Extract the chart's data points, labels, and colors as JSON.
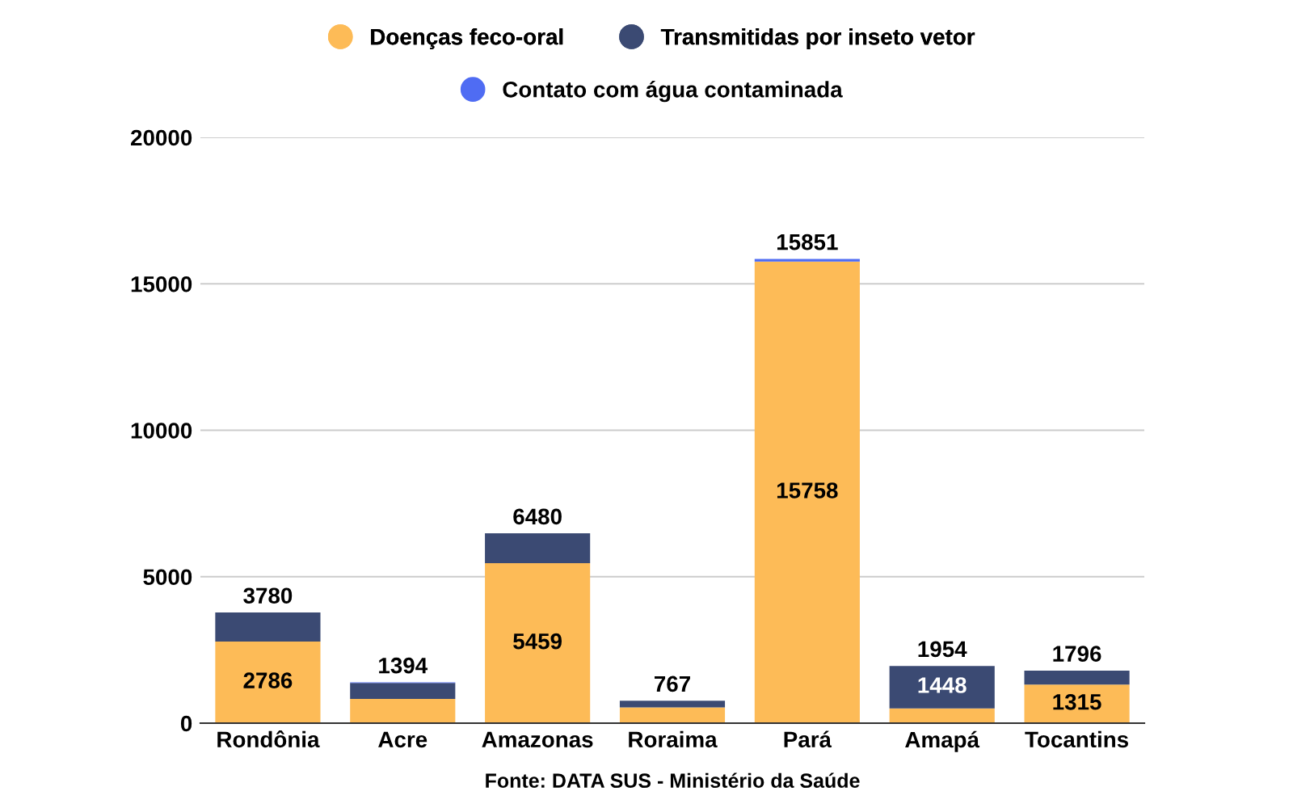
{
  "chart_data": {
    "type": "bar",
    "stacked": true,
    "categories": [
      "Rondônia",
      "Acre",
      "Amazonas",
      "Roraima",
      "Pará",
      "Amapá",
      "Tocantins"
    ],
    "series": [
      {
        "name": "Doenças feco-oral",
        "color": "#fdbb57",
        "values": [
          2786,
          830,
          5459,
          540,
          15758,
          506,
          1315
        ],
        "value_labels": [
          "2786",
          null,
          "5459",
          null,
          "15758",
          null,
          "1315"
        ]
      },
      {
        "name": "Transmitidas por inseto vetor",
        "color": "#3b4a73",
        "values": [
          994,
          540,
          1021,
          227,
          0,
          1448,
          481
        ],
        "value_labels": [
          null,
          null,
          null,
          null,
          null,
          "1448",
          null
        ]
      },
      {
        "name": "Contato com água contaminada",
        "color": "#4f6cf3",
        "values": [
          0,
          24,
          0,
          0,
          93,
          0,
          0
        ]
      }
    ],
    "totals": [
      "3780",
      "1394",
      "6480",
      "767",
      "15851",
      "1954",
      "1796"
    ],
    "ylim": [
      0,
      20000
    ],
    "yticks": [
      0,
      5000,
      10000,
      15000,
      20000
    ],
    "grid": "y",
    "legend": "top",
    "annotations": [
      "Fonte: DATA SUS - Ministério da Saúde"
    ]
  }
}
